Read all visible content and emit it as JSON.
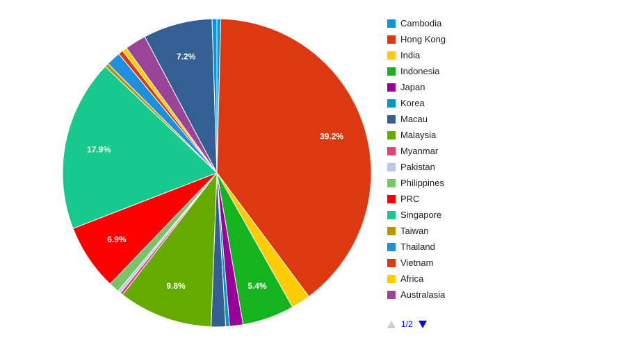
{
  "chart_data": {
    "type": "pie",
    "slices": [
      {
        "name": "Cambodia",
        "value": 0.4,
        "color": "#0d94d6"
      },
      {
        "name": "Hong Kong",
        "value": 39.2,
        "color": "#dc3912",
        "label": "39.2%"
      },
      {
        "name": "India",
        "value": 2.0,
        "color": "#ffcc00"
      },
      {
        "name": "Indonesia",
        "value": 5.4,
        "color": "#15b41e",
        "label": "5.4%"
      },
      {
        "name": "Japan",
        "value": 1.4,
        "color": "#990099"
      },
      {
        "name": "Korea",
        "value": 0.4,
        "color": "#0099c6"
      },
      {
        "name": "Macau",
        "value": 1.5,
        "color": "#335f93"
      },
      {
        "name": "Malaysia",
        "value": 9.8,
        "color": "#66aa00",
        "label": "9.8%"
      },
      {
        "name": "Myanmar",
        "value": 0.3,
        "color": "#dd4477"
      },
      {
        "name": "Pakistan",
        "value": 0.3,
        "color": "#b8c8e8"
      },
      {
        "name": "Philippines",
        "value": 1.1,
        "color": "#79c36a"
      },
      {
        "name": "PRC",
        "value": 6.9,
        "color": "#ff0000",
        "label": "6.9%"
      },
      {
        "name": "Singapore",
        "value": 17.9,
        "color": "#17c88f",
        "label": "17.9%"
      },
      {
        "name": "Taiwan",
        "value": 0.4,
        "color": "#b59600"
      },
      {
        "name": "Thailand",
        "value": 1.5,
        "color": "#1f8fdc"
      },
      {
        "name": "Vietnam",
        "value": 0.5,
        "color": "#dc3912"
      },
      {
        "name": "Africa",
        "value": 0.5,
        "color": "#ffcc00"
      },
      {
        "name": "Australasia",
        "value": 2.2,
        "color": "#994499"
      },
      {
        "name": "Macau",
        "value": 7.2,
        "color": "#335f93",
        "label": "7.2%"
      },
      {
        "name": "Cambodia",
        "value": 0.5,
        "color": "#0d94d6"
      }
    ],
    "legend": {
      "position": "right",
      "entries": [
        {
          "name": "Cambodia",
          "color": "#0d94d6"
        },
        {
          "name": "Hong Kong",
          "color": "#dc3912"
        },
        {
          "name": "India",
          "color": "#ffcc00"
        },
        {
          "name": "Indonesia",
          "color": "#15b41e"
        },
        {
          "name": "Japan",
          "color": "#990099"
        },
        {
          "name": "Korea",
          "color": "#0099c6"
        },
        {
          "name": "Macau",
          "color": "#335f93"
        },
        {
          "name": "Malaysia",
          "color": "#66aa00"
        },
        {
          "name": "Myanmar",
          "color": "#dd4477"
        },
        {
          "name": "Pakistan",
          "color": "#b8c8e8"
        },
        {
          "name": "Philippines",
          "color": "#79c36a"
        },
        {
          "name": "PRC",
          "color": "#ff0000"
        },
        {
          "name": "Singapore",
          "color": "#17c88f"
        },
        {
          "name": "Taiwan",
          "color": "#b59600"
        },
        {
          "name": "Thailand",
          "color": "#1f8fdc"
        },
        {
          "name": "Vietnam",
          "color": "#dc3912"
        },
        {
          "name": "Africa",
          "color": "#ffcc00"
        },
        {
          "name": "Australasia",
          "color": "#994499"
        }
      ]
    }
  },
  "pager": {
    "text": "1/2"
  }
}
